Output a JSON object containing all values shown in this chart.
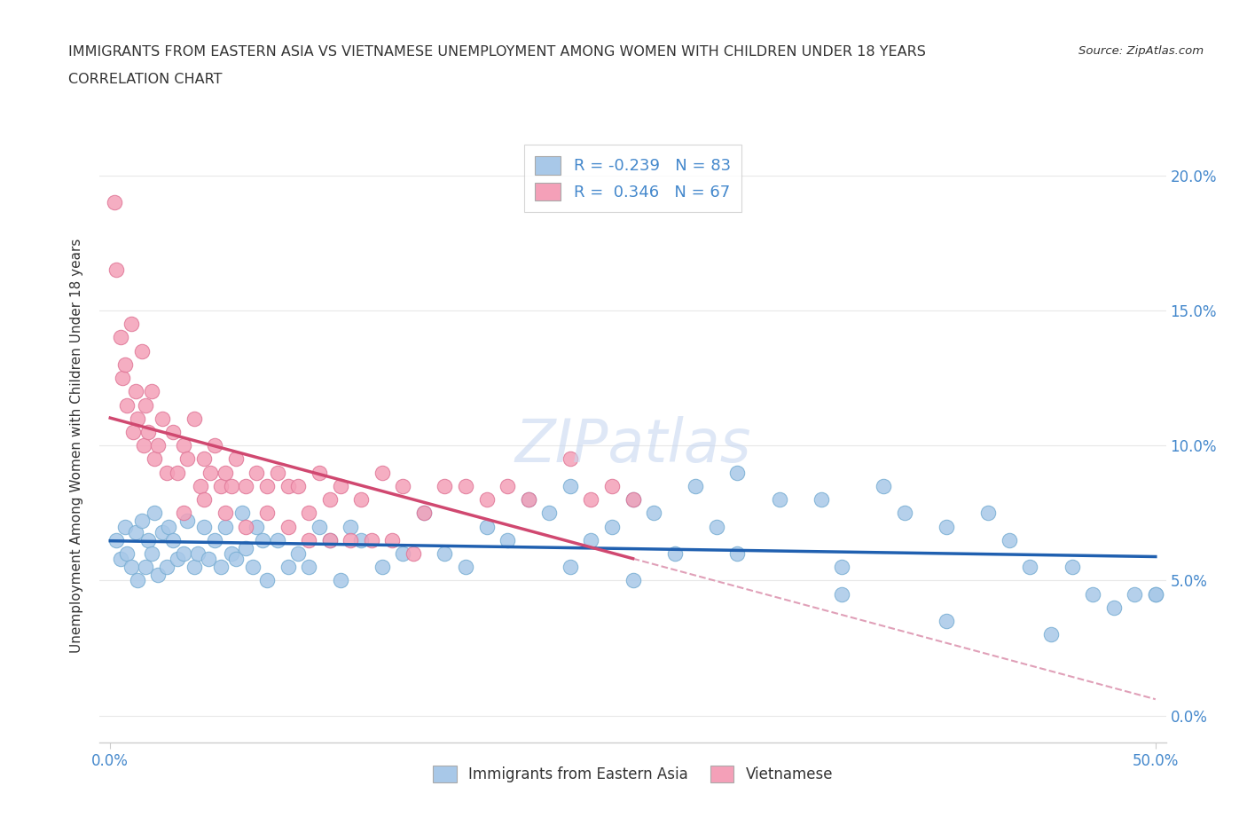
{
  "title": "IMMIGRANTS FROM EASTERN ASIA VS VIETNAMESE UNEMPLOYMENT AMONG WOMEN WITH CHILDREN UNDER 18 YEARS",
  "subtitle": "CORRELATION CHART",
  "source": "Source: ZipAtlas.com",
  "ylabel": "Unemployment Among Women with Children Under 18 years",
  "legend1_label": "Immigrants from Eastern Asia",
  "legend2_label": "Vietnamese",
  "R1": -0.239,
  "N1": 83,
  "R2": 0.346,
  "N2": 67,
  "blue_color": "#a8c8e8",
  "blue_edge_color": "#7aafd4",
  "pink_color": "#f4a0b8",
  "pink_edge_color": "#e07898",
  "blue_line_color": "#2060b0",
  "pink_line_color": "#d04870",
  "dashed_line_color": "#e0a0b8",
  "grid_color": "#e8e8e8",
  "tick_color": "#4488cc",
  "title_color": "#333333",
  "watermark_color": "#c8d8f0",
  "blue_x": [
    0.3,
    0.5,
    0.7,
    0.8,
    1.0,
    1.2,
    1.3,
    1.5,
    1.7,
    1.8,
    2.0,
    2.1,
    2.3,
    2.5,
    2.7,
    2.8,
    3.0,
    3.2,
    3.5,
    3.7,
    4.0,
    4.2,
    4.5,
    4.7,
    5.0,
    5.3,
    5.5,
    5.8,
    6.0,
    6.3,
    6.5,
    6.8,
    7.0,
    7.3,
    7.5,
    8.0,
    8.5,
    9.0,
    9.5,
    10.0,
    10.5,
    11.0,
    11.5,
    12.0,
    13.0,
    14.0,
    15.0,
    16.0,
    17.0,
    18.0,
    19.0,
    20.0,
    21.0,
    22.0,
    23.0,
    24.0,
    25.0,
    26.0,
    27.0,
    28.0,
    29.0,
    30.0,
    32.0,
    34.0,
    35.0,
    37.0,
    38.0,
    40.0,
    42.0,
    43.0,
    44.0,
    46.0,
    47.0,
    48.0,
    49.0,
    50.0,
    22.0,
    25.0,
    30.0,
    35.0,
    40.0,
    45.0,
    50.0
  ],
  "blue_y": [
    6.5,
    5.8,
    7.0,
    6.0,
    5.5,
    6.8,
    5.0,
    7.2,
    5.5,
    6.5,
    6.0,
    7.5,
    5.2,
    6.8,
    5.5,
    7.0,
    6.5,
    5.8,
    6.0,
    7.2,
    5.5,
    6.0,
    7.0,
    5.8,
    6.5,
    5.5,
    7.0,
    6.0,
    5.8,
    7.5,
    6.2,
    5.5,
    7.0,
    6.5,
    5.0,
    6.5,
    5.5,
    6.0,
    5.5,
    7.0,
    6.5,
    5.0,
    7.0,
    6.5,
    5.5,
    6.0,
    7.5,
    6.0,
    5.5,
    7.0,
    6.5,
    8.0,
    7.5,
    8.5,
    6.5,
    7.0,
    8.0,
    7.5,
    6.0,
    8.5,
    7.0,
    9.0,
    8.0,
    8.0,
    5.5,
    8.5,
    7.5,
    7.0,
    7.5,
    6.5,
    5.5,
    5.5,
    4.5,
    4.0,
    4.5,
    4.5,
    5.5,
    5.0,
    6.0,
    4.5,
    3.5,
    3.0,
    4.5
  ],
  "pink_x": [
    0.2,
    0.3,
    0.5,
    0.6,
    0.7,
    0.8,
    1.0,
    1.1,
    1.2,
    1.3,
    1.5,
    1.6,
    1.7,
    1.8,
    2.0,
    2.1,
    2.3,
    2.5,
    2.7,
    3.0,
    3.2,
    3.5,
    3.7,
    4.0,
    4.3,
    4.5,
    4.8,
    5.0,
    5.3,
    5.5,
    5.8,
    6.0,
    6.5,
    7.0,
    7.5,
    8.0,
    8.5,
    9.0,
    9.5,
    10.0,
    10.5,
    11.0,
    12.0,
    13.0,
    14.0,
    15.0,
    16.0,
    17.0,
    18.0,
    19.0,
    20.0,
    22.0,
    23.0,
    24.0,
    25.0,
    3.5,
    4.5,
    5.5,
    6.5,
    7.5,
    8.5,
    9.5,
    10.5,
    11.5,
    12.5,
    13.5,
    14.5
  ],
  "pink_y": [
    19.0,
    16.5,
    14.0,
    12.5,
    13.0,
    11.5,
    14.5,
    10.5,
    12.0,
    11.0,
    13.5,
    10.0,
    11.5,
    10.5,
    12.0,
    9.5,
    10.0,
    11.0,
    9.0,
    10.5,
    9.0,
    10.0,
    9.5,
    11.0,
    8.5,
    9.5,
    9.0,
    10.0,
    8.5,
    9.0,
    8.5,
    9.5,
    8.5,
    9.0,
    8.5,
    9.0,
    8.5,
    8.5,
    7.5,
    9.0,
    8.0,
    8.5,
    8.0,
    9.0,
    8.5,
    7.5,
    8.5,
    8.5,
    8.0,
    8.5,
    8.0,
    9.5,
    8.0,
    8.5,
    8.0,
    7.5,
    8.0,
    7.5,
    7.0,
    7.5,
    7.0,
    6.5,
    6.5,
    6.5,
    6.5,
    6.5,
    6.0
  ],
  "xlim": [
    0,
    50
  ],
  "ylim": [
    0,
    21
  ],
  "yticks": [
    0,
    5,
    10,
    15,
    20
  ],
  "ytick_labels": [
    "0.0%",
    "5.0%",
    "10.0%",
    "15.0%",
    "20.0%"
  ],
  "xticks": [
    0,
    50
  ],
  "xtick_labels": [
    "0.0%",
    "50.0%"
  ]
}
